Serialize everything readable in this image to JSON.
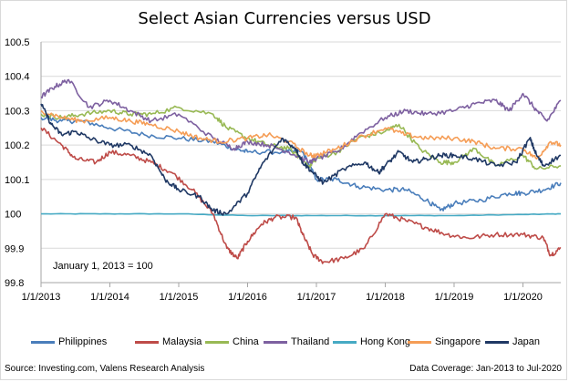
{
  "chart_data": {
    "type": "line",
    "title": "Select Asian Currencies versus USD",
    "note": "January 1, 2013 = 100",
    "x_ticks": [
      "1/1/2013",
      "1/1/2014",
      "1/1/2015",
      "1/1/2016",
      "1/1/2017",
      "1/1/2018",
      "1/1/2019",
      "1/1/2020"
    ],
    "x_tick_years": [
      2013,
      2014,
      2015,
      2016,
      2017,
      2018,
      2019,
      2020
    ],
    "xlim": [
      2013.0,
      2020.55
    ],
    "y_ticks": [
      99.8,
      99.9,
      100,
      100.1,
      100.2,
      100.3,
      100.4,
      100.5
    ],
    "y_tick_labels": [
      "99.8",
      "99.9",
      "100",
      "100.1",
      "100.2",
      "100.3",
      "100.4",
      "100.5"
    ],
    "ylim": [
      99.8,
      100.5
    ],
    "grid": "horizontal",
    "legend_position": "bottom",
    "series": [
      {
        "name": "Philippines",
        "color": "#4a7ebb",
        "x": [
          2013.0,
          2013.3,
          2013.6,
          2014.0,
          2014.5,
          2015.0,
          2015.5,
          2015.8,
          2016.0,
          2016.5,
          2016.8,
          2017.0,
          2017.3,
          2017.6,
          2018.0,
          2018.3,
          2018.6,
          2018.8,
          2019.0,
          2019.4,
          2019.8,
          2020.0,
          2020.3,
          2020.55
        ],
        "values": [
          100.28,
          100.27,
          100.27,
          100.25,
          100.23,
          100.22,
          100.21,
          100.19,
          100.18,
          100.18,
          100.18,
          100.1,
          100.1,
          100.08,
          100.07,
          100.07,
          100.04,
          100.01,
          100.03,
          100.04,
          100.06,
          100.06,
          100.07,
          100.09
        ]
      },
      {
        "name": "Malaysia",
        "color": "#be4b48",
        "x": [
          2013.0,
          2013.3,
          2013.5,
          2013.8,
          2014.0,
          2014.3,
          2014.6,
          2014.9,
          2015.2,
          2015.5,
          2015.7,
          2015.85,
          2016.0,
          2016.2,
          2016.4,
          2016.7,
          2016.8,
          2016.95,
          2017.1,
          2017.4,
          2017.7,
          2018.0,
          2018.3,
          2018.6,
          2018.9,
          2019.2,
          2019.6,
          2020.0,
          2020.3,
          2020.4,
          2020.55
        ],
        "values": [
          100.25,
          100.2,
          100.16,
          100.15,
          100.18,
          100.17,
          100.15,
          100.12,
          100.07,
          100.0,
          99.9,
          99.87,
          99.92,
          99.97,
          99.99,
          99.99,
          99.94,
          99.88,
          99.86,
          99.87,
          99.9,
          100.0,
          99.98,
          99.96,
          99.94,
          99.93,
          99.94,
          99.94,
          99.93,
          99.88,
          99.9
        ]
      },
      {
        "name": "China",
        "color": "#98b954",
        "x": [
          2013.0,
          2013.3,
          2013.6,
          2014.0,
          2014.3,
          2014.6,
          2015.0,
          2015.5,
          2015.7,
          2016.0,
          2016.3,
          2016.6,
          2016.9,
          2017.0,
          2017.3,
          2017.6,
          2018.0,
          2018.2,
          2018.5,
          2018.8,
          2019.0,
          2019.3,
          2019.6,
          2020.0,
          2020.2,
          2020.55
        ],
        "values": [
          100.29,
          100.28,
          100.29,
          100.3,
          100.29,
          100.29,
          100.31,
          100.29,
          100.25,
          100.22,
          100.2,
          100.19,
          100.14,
          100.16,
          100.18,
          100.22,
          100.24,
          100.26,
          100.19,
          100.15,
          100.15,
          100.19,
          100.14,
          100.17,
          100.13,
          100.14
        ]
      },
      {
        "name": "Thailand",
        "color": "#7d60a0",
        "x": [
          2013.0,
          2013.2,
          2013.4,
          2013.7,
          2014.0,
          2014.3,
          2014.6,
          2015.0,
          2015.5,
          2015.8,
          2016.0,
          2016.3,
          2016.6,
          2016.9,
          2017.0,
          2017.3,
          2017.6,
          2018.0,
          2018.3,
          2018.6,
          2019.0,
          2019.3,
          2019.6,
          2019.8,
          2020.0,
          2020.2,
          2020.35,
          2020.55
        ],
        "values": [
          100.34,
          100.37,
          100.39,
          100.31,
          100.33,
          100.3,
          100.27,
          100.29,
          100.22,
          100.19,
          100.21,
          100.2,
          100.18,
          100.15,
          100.16,
          100.18,
          100.23,
          100.28,
          100.3,
          100.29,
          100.3,
          100.32,
          100.33,
          100.3,
          100.35,
          100.3,
          100.27,
          100.33
        ]
      },
      {
        "name": "Hong Kong",
        "color": "#46aac4",
        "x": [
          2013.0,
          2014.0,
          2015.0,
          2016.0,
          2017.0,
          2018.0,
          2019.0,
          2020.0,
          2020.55
        ],
        "values": [
          100.0,
          100.0,
          100.0,
          99.995,
          99.995,
          99.995,
          99.995,
          99.998,
          100.0
        ]
      },
      {
        "name": "Singapore",
        "color": "#f59d56",
        "x": [
          2013.0,
          2013.3,
          2013.6,
          2014.0,
          2014.3,
          2014.6,
          2015.0,
          2015.3,
          2015.6,
          2016.0,
          2016.3,
          2016.6,
          2016.9,
          2017.0,
          2017.3,
          2017.6,
          2018.0,
          2018.3,
          2018.6,
          2019.0,
          2019.3,
          2019.6,
          2020.0,
          2020.2,
          2020.4,
          2020.55
        ],
        "values": [
          100.3,
          100.28,
          100.27,
          100.28,
          100.27,
          100.26,
          100.24,
          100.22,
          100.21,
          100.22,
          100.23,
          100.21,
          100.17,
          100.17,
          100.19,
          100.22,
          100.25,
          100.23,
          100.22,
          100.22,
          100.21,
          100.19,
          100.19,
          100.16,
          100.21,
          100.2
        ]
      },
      {
        "name": "Japan",
        "color": "#1f3864",
        "x": [
          2013.0,
          2013.15,
          2013.3,
          2013.5,
          2013.7,
          2014.0,
          2014.3,
          2014.6,
          2014.8,
          2015.0,
          2015.3,
          2015.5,
          2015.7,
          2016.0,
          2016.2,
          2016.5,
          2016.7,
          2016.8,
          2016.95,
          2017.1,
          2017.4,
          2017.7,
          2017.9,
          2018.0,
          2018.2,
          2018.4,
          2018.6,
          2018.8,
          2019.0,
          2019.3,
          2019.6,
          2019.9,
          2020.1,
          2020.2,
          2020.3,
          2020.55
        ],
        "values": [
          100.32,
          100.26,
          100.23,
          100.24,
          100.22,
          100.2,
          100.2,
          100.17,
          100.1,
          100.07,
          100.05,
          100.01,
          100.0,
          100.06,
          100.14,
          100.22,
          100.19,
          100.15,
          100.12,
          100.09,
          100.13,
          100.15,
          100.12,
          100.14,
          100.18,
          100.15,
          100.16,
          100.17,
          100.17,
          100.16,
          100.14,
          100.15,
          100.22,
          100.17,
          100.14,
          100.17
        ]
      }
    ]
  },
  "footer": {
    "source": "Source: Investing.com, Valens Research Analysis",
    "coverage": "Data Coverage: Jan-2013 to Jul-2020"
  }
}
